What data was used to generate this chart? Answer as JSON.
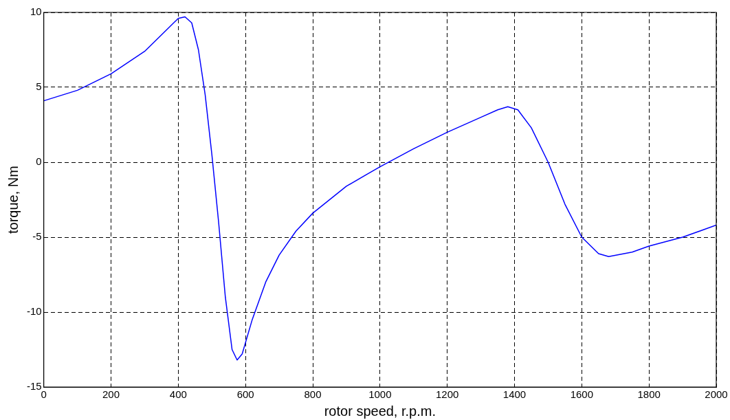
{
  "chart_data": {
    "type": "line",
    "xlabel": "rotor speed, r.p.m.",
    "ylabel": "torque, Nm",
    "x": [
      0,
      100,
      200,
      300,
      350,
      400,
      420,
      440,
      460,
      480,
      500,
      520,
      540,
      560,
      575,
      590,
      620,
      660,
      700,
      750,
      800,
      900,
      1000,
      1100,
      1200,
      1300,
      1350,
      1380,
      1410,
      1450,
      1500,
      1550,
      1600,
      1650,
      1680,
      1750,
      1800,
      1900,
      2000
    ],
    "series": [
      {
        "color": "#0000ff",
        "values": [
          4.1,
          4.8,
          5.9,
          7.4,
          8.5,
          9.6,
          9.7,
          9.3,
          7.5,
          4.5,
          0.5,
          -4,
          -9,
          -12.5,
          -13.2,
          -12.8,
          -10.5,
          -8,
          -6.2,
          -4.6,
          -3.4,
          -1.6,
          -0.3,
          0.9,
          2.0,
          3.0,
          3.5,
          3.7,
          3.5,
          2.3,
          0,
          -2.8,
          -5.0,
          -6.1,
          -6.3,
          -6.0,
          -5.6,
          -5.0,
          -4.2
        ]
      }
    ],
    "xlim": [
      0,
      2000
    ],
    "xticks": [
      0,
      200,
      400,
      600,
      800,
      1000,
      1200,
      1400,
      1600,
      1800,
      2000
    ],
    "ylim": [
      -15,
      10
    ],
    "yticks": [
      -15,
      -10,
      -5,
      0,
      5,
      10
    ],
    "grid": true,
    "legend": false,
    "marker": "none",
    "line_style": "solid"
  }
}
